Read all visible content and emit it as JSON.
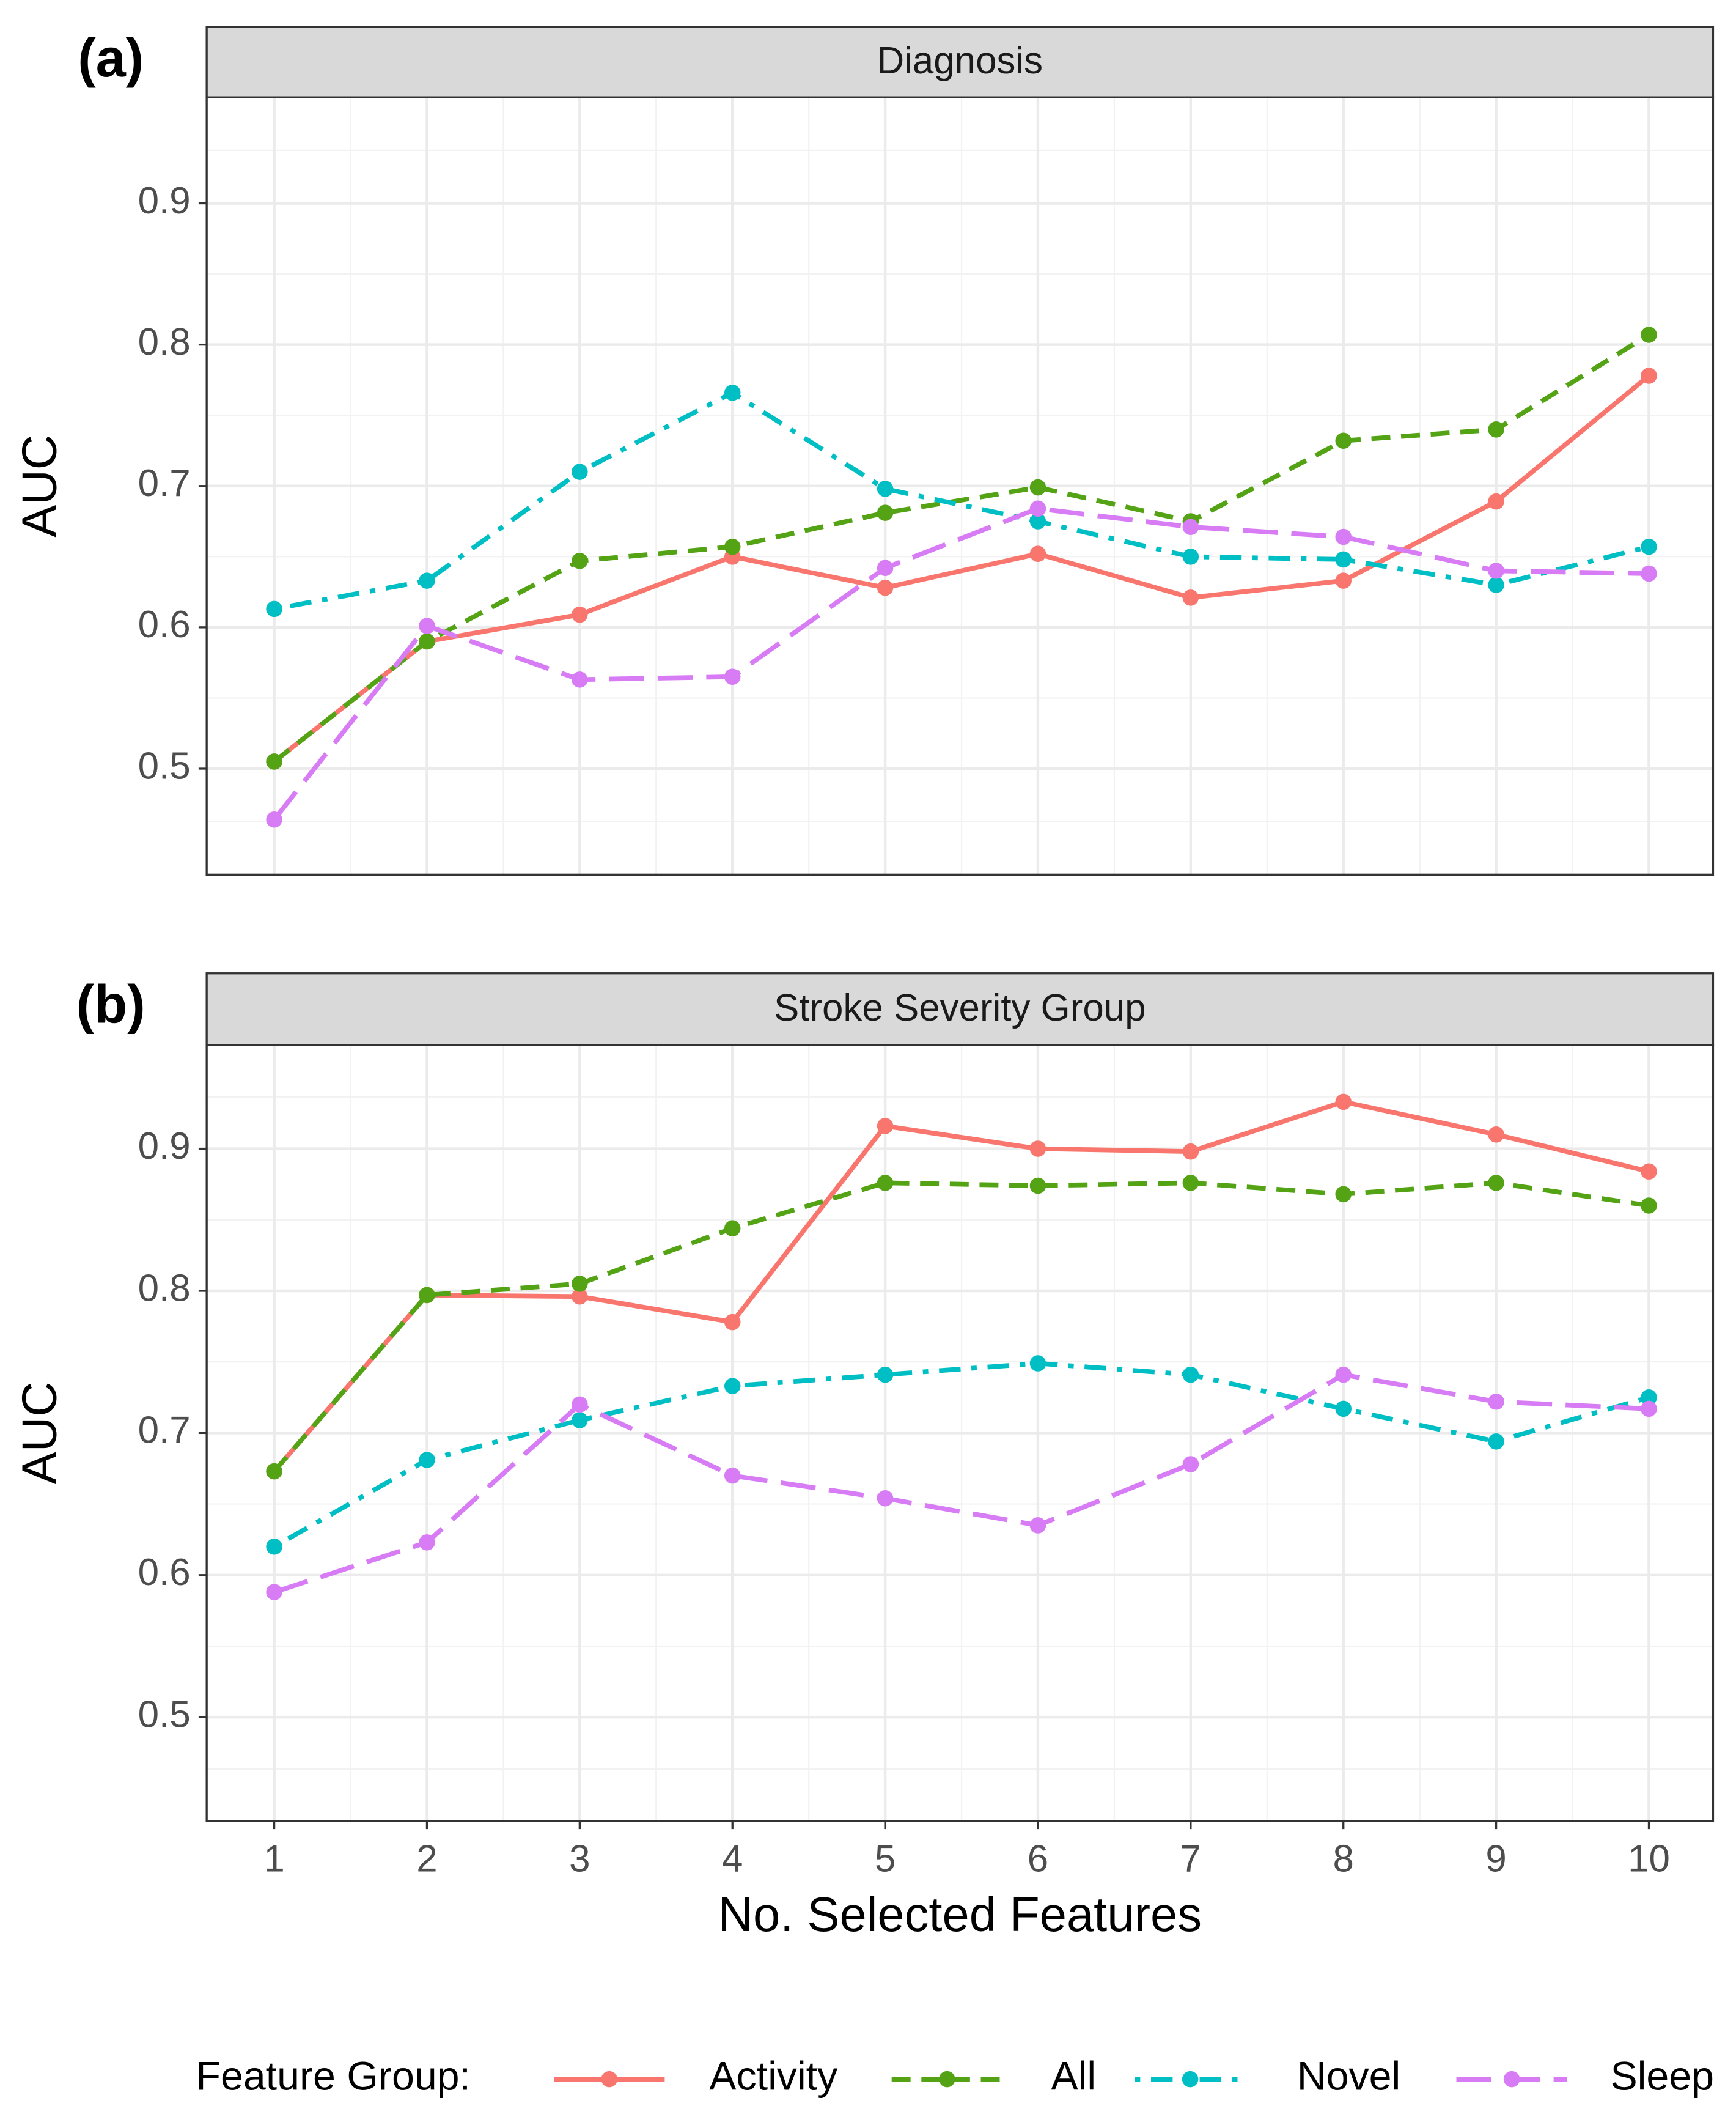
{
  "chart_data": [
    {
      "type": "line",
      "panel_label": "(a)",
      "title": "Diagnosis",
      "ylabel": "AUC",
      "x": [
        1,
        2,
        3,
        4,
        5,
        6,
        7,
        8,
        9,
        10
      ],
      "xlim": [
        0.558,
        10.42
      ],
      "xticks": [
        1,
        2,
        3,
        4,
        5,
        6,
        7,
        8,
        9,
        10
      ],
      "ylim": [
        0.425,
        0.975
      ],
      "yticks": [
        0.5,
        0.6,
        0.7,
        0.8,
        0.9
      ],
      "grid": true,
      "series": [
        {
          "name": "Activity",
          "color": "#f8766d",
          "linestyle": "solid",
          "values": [
            0.505,
            0.59,
            0.609,
            0.65,
            0.628,
            0.652,
            0.621,
            0.633,
            0.689,
            0.778
          ]
        },
        {
          "name": "All",
          "color": "#53a315",
          "linestyle": "dashed",
          "values": [
            0.505,
            0.59,
            0.647,
            0.657,
            0.681,
            0.699,
            0.675,
            0.732,
            0.74,
            0.807
          ]
        },
        {
          "name": "Novel",
          "color": "#00bfc4",
          "linestyle": "dotdash",
          "values": [
            0.613,
            0.633,
            0.71,
            0.766,
            0.698,
            0.675,
            0.65,
            0.648,
            0.63,
            0.657
          ]
        },
        {
          "name": "Sleep",
          "color": "#d77cf5",
          "linestyle": "longdash",
          "values": [
            0.464,
            0.601,
            0.563,
            0.565,
            0.642,
            0.684,
            0.671,
            0.664,
            0.64,
            0.638
          ]
        }
      ]
    },
    {
      "type": "line",
      "panel_label": "(b)",
      "title": "Stroke Severity Group",
      "ylabel": "AUC",
      "xlabel": "No. Selected Features",
      "x": [
        1,
        2,
        3,
        4,
        5,
        6,
        7,
        8,
        9,
        10
      ],
      "xlim": [
        0.558,
        10.42
      ],
      "xticks": [
        1,
        2,
        3,
        4,
        5,
        6,
        7,
        8,
        9,
        10
      ],
      "ylim": [
        0.427,
        0.973
      ],
      "yticks": [
        0.5,
        0.6,
        0.7,
        0.8,
        0.9
      ],
      "grid": true,
      "legend_title": "Feature Group:",
      "legend_position": "bottom",
      "series": [
        {
          "name": "Activity",
          "color": "#f8766d",
          "linestyle": "solid",
          "values": [
            0.673,
            0.797,
            0.796,
            0.778,
            0.916,
            0.9,
            0.898,
            0.933,
            0.91,
            0.884
          ]
        },
        {
          "name": "All",
          "color": "#53a315",
          "linestyle": "dashed",
          "values": [
            0.673,
            0.797,
            0.805,
            0.844,
            0.876,
            0.874,
            0.876,
            0.868,
            0.876,
            0.86
          ]
        },
        {
          "name": "Novel",
          "color": "#00bfc4",
          "linestyle": "dotdash",
          "values": [
            0.62,
            0.681,
            0.709,
            0.733,
            0.741,
            0.749,
            0.741,
            0.717,
            0.694,
            0.725
          ]
        },
        {
          "name": "Sleep",
          "color": "#d77cf5",
          "linestyle": "longdash",
          "values": [
            0.588,
            0.623,
            0.72,
            0.67,
            0.654,
            0.635,
            0.678,
            0.741,
            0.722,
            0.717
          ]
        }
      ]
    }
  ]
}
